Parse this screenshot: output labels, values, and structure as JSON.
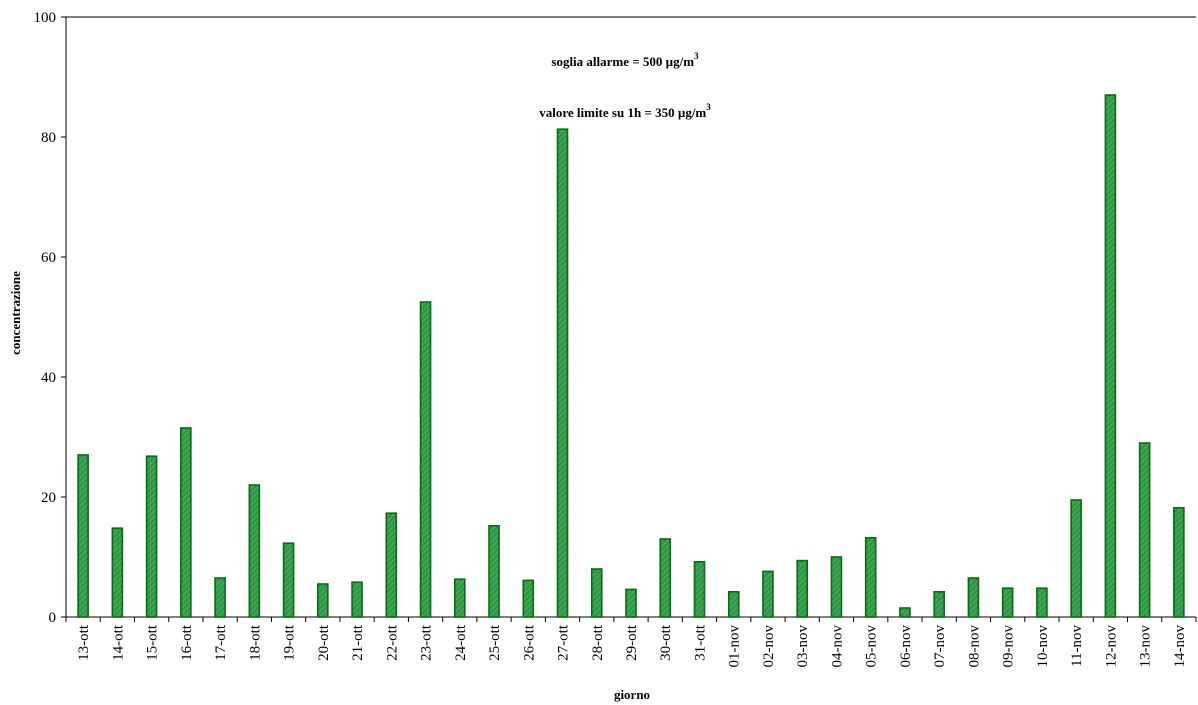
{
  "chart_data": {
    "type": "bar",
    "categories": [
      "13-ott",
      "14-ott",
      "15-ott",
      "16-ott",
      "17-ott",
      "18-ott",
      "19-ott",
      "20-ott",
      "21-ott",
      "22-ott",
      "23-ott",
      "24-ott",
      "25-ott",
      "26-ott",
      "27-ott",
      "28-ott",
      "29-ott",
      "30-ott",
      "31-ott",
      "01-nov",
      "02-nov",
      "03-nov",
      "04-nov",
      "05-nov",
      "06-nov",
      "07-nov",
      "08-nov",
      "09-nov",
      "10-nov",
      "11-nov",
      "12-nov",
      "13-nov",
      "14-nov"
    ],
    "values": [
      27,
      14.8,
      26.8,
      31.5,
      6.5,
      22,
      12.3,
      5.5,
      5.8,
      17.3,
      52.5,
      6.3,
      15.2,
      6.1,
      81.3,
      8,
      4.6,
      13,
      9.2,
      4.2,
      7.6,
      9.4,
      10,
      13.2,
      1.5,
      4.2,
      6.5,
      4.8,
      4.8,
      19.5,
      87,
      29,
      18.2
    ],
    "xlabel": "giorno",
    "ylabel": "concentrazione",
    "ylim": [
      0,
      100
    ],
    "yticks": [
      "0",
      "20",
      "40",
      "60",
      "80",
      "100"
    ],
    "grid": false,
    "colors": {
      "bar_fill": "#2e9a45",
      "bar_stroke": "#0a6a14",
      "axis": "#000000"
    },
    "annotations": [
      {
        "text": "soglia allarme = 500 µg/m",
        "sup": "3"
      },
      {
        "text": "valore limite su 1h = 350 µg/m",
        "sup": "3"
      }
    ]
  }
}
